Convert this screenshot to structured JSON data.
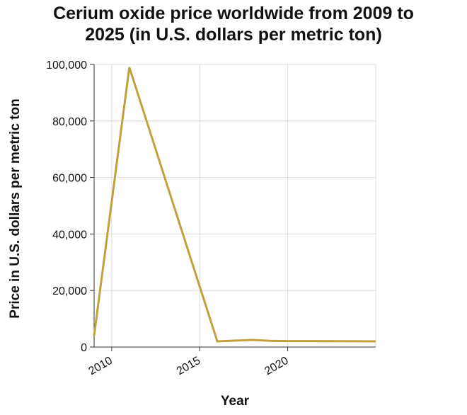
{
  "chart_data": {
    "type": "line",
    "title_lines": [
      "Cerium oxide price worldwide from 2009 to",
      "2025 (in U.S. dollars per metric ton)"
    ],
    "xlabel": "Year",
    "ylabel": "Price in U.S. dollars per metric ton",
    "xlim": [
      2009,
      2025
    ],
    "ylim": [
      0,
      100000
    ],
    "x_ticks": [
      2010,
      2015,
      2020
    ],
    "x_tick_labels": [
      "2010",
      "2015",
      "2020"
    ],
    "y_ticks": [
      0,
      20000,
      40000,
      60000,
      80000,
      100000
    ],
    "y_tick_labels": [
      "0",
      "20,000",
      "40,000",
      "60,000",
      "80,000",
      "100,000"
    ],
    "grid": true,
    "series": [
      {
        "color": "#c2a03c",
        "x": [
          2009,
          2011,
          2016,
          2018,
          2019,
          2020,
          2021,
          2025
        ],
        "y": [
          4000,
          99000,
          2000,
          2500,
          2200,
          2100,
          2100,
          2000
        ]
      }
    ]
  }
}
